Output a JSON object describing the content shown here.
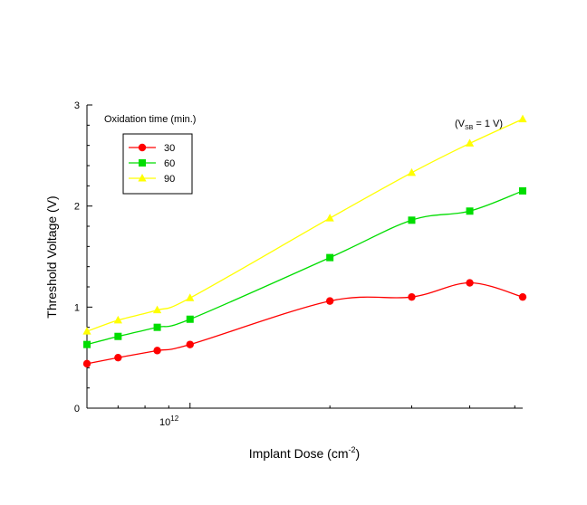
{
  "chart_data": {
    "type": "line",
    "title": "",
    "xlabel": "Implant Dose (cm",
    "xlabel_sup": "-2",
    "xlabel_close": ")",
    "ylabel": "Threshold Voltage (V)",
    "x_scale": "log",
    "x_tick_base": "10",
    "x_tick_exp": "12",
    "xlim": [
      600000000000.0,
      5200000000000.0
    ],
    "ylim": [
      0,
      3
    ],
    "y_ticks": [
      "0",
      "1",
      "2",
      "3"
    ],
    "grid": false,
    "legend": {
      "title": "Oxidation time (min.)",
      "placement": "top-left"
    },
    "annotation": {
      "prefix": "(V",
      "sub": "SB",
      "suffix": " = 1 V)"
    },
    "x": [
      600000000000.0,
      700000000000.0,
      850000000000.0,
      1000000000000.0,
      2000000000000.0,
      3000000000000.0,
      4000000000000.0,
      5200000000000.0
    ],
    "series": [
      {
        "name": "30",
        "color": "#ff0000",
        "marker": "circle",
        "values": [
          0.44,
          0.5,
          0.57,
          0.63,
          1.06,
          1.1,
          1.24,
          1.1
        ]
      },
      {
        "name": "60",
        "color": "#00dd00",
        "marker": "square",
        "values": [
          0.63,
          0.71,
          0.8,
          0.88,
          1.49,
          1.86,
          1.95,
          2.15
        ]
      },
      {
        "name": "90",
        "color": "#ffff00",
        "marker": "triangle",
        "values": [
          0.76,
          0.87,
          0.97,
          1.09,
          1.88,
          2.33,
          2.62,
          2.86
        ]
      }
    ]
  }
}
